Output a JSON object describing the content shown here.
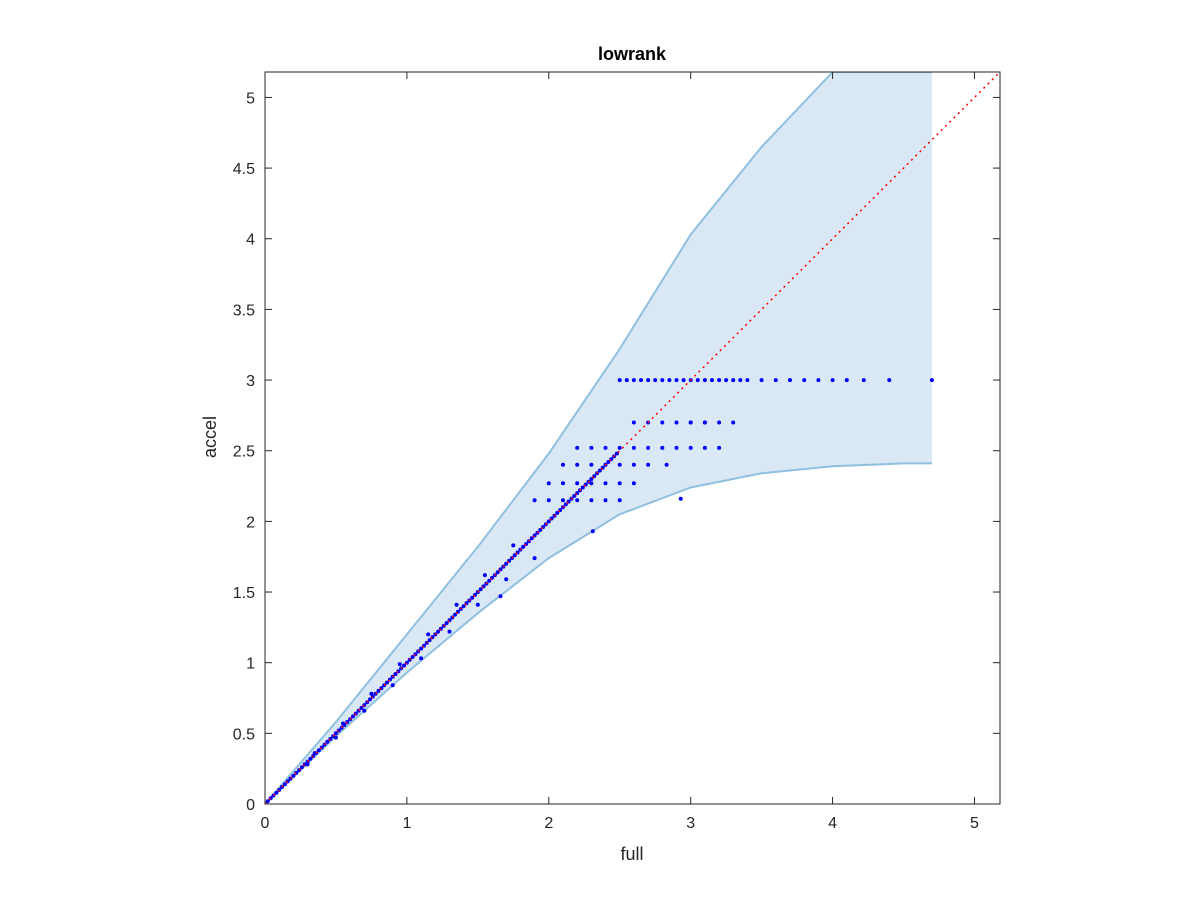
{
  "chart_data": {
    "type": "scatter",
    "title": "lowrank",
    "xlabel": "full",
    "ylabel": "accel",
    "xlim": [
      0,
      5.18
    ],
    "ylim": [
      0,
      5.18
    ],
    "xticks": [
      0,
      1,
      2,
      3,
      4,
      5
    ],
    "xtick_labels": [
      "0",
      "1",
      "2",
      "3",
      "4",
      "5"
    ],
    "yticks": [
      0,
      0.5,
      1,
      1.5,
      2,
      2.5,
      3,
      3.5,
      4,
      4.5,
      5
    ],
    "ytick_labels": [
      "0",
      "0.5",
      "1",
      "1.5",
      "2",
      "2.5",
      "3",
      "3.5",
      "4",
      "4.5",
      "5"
    ],
    "grid": false,
    "colors": {
      "points": "#0000ff",
      "band_fill": "#d9e8f4",
      "band_edge": "#8fc0e0",
      "reference_line": "#ff0000"
    },
    "reference_line": {
      "style": "dotted",
      "x": [
        0,
        5.18
      ],
      "y": [
        0,
        5.18
      ]
    },
    "band": {
      "upper": {
        "x": [
          0,
          0.5,
          1,
          1.5,
          2,
          2.5,
          3,
          3.5,
          4,
          4.5,
          4.7
        ],
        "y": [
          0,
          0.58,
          1.2,
          1.82,
          2.48,
          3.22,
          4.03,
          4.65,
          5.18,
          5.18,
          5.18
        ]
      },
      "lower": {
        "x": [
          0,
          0.5,
          1,
          1.5,
          2,
          2.5,
          3,
          3.5,
          4,
          4.5,
          4.7
        ],
        "y": [
          0,
          0.48,
          0.93,
          1.35,
          1.74,
          2.05,
          2.24,
          2.34,
          2.39,
          2.41,
          2.41
        ]
      }
    },
    "series": [
      {
        "x": [
          0.02,
          0.04,
          0.06,
          0.08,
          0.1,
          0.12,
          0.14,
          0.16,
          0.18,
          0.2,
          0.22,
          0.24,
          0.26,
          0.28,
          0.3,
          0.32,
          0.34,
          0.36,
          0.38,
          0.4,
          0.42,
          0.44,
          0.46,
          0.48,
          0.5,
          0.52,
          0.54,
          0.56,
          0.58,
          0.6,
          0.62,
          0.64,
          0.66,
          0.68,
          0.7,
          0.72,
          0.74,
          0.76,
          0.78,
          0.8,
          0.82,
          0.84,
          0.86,
          0.88,
          0.9,
          0.92,
          0.94,
          0.96,
          0.98,
          1.0,
          1.02,
          1.04,
          1.06,
          1.08,
          1.1,
          1.12,
          1.14,
          1.16,
          1.18,
          1.2,
          1.22,
          1.24,
          1.26,
          1.28,
          1.3,
          1.32,
          1.34,
          1.36,
          1.38,
          1.4,
          1.42,
          1.44,
          1.46,
          1.48,
          1.5,
          1.52,
          1.54,
          1.56,
          1.58,
          1.6,
          1.62,
          1.64,
          1.66,
          1.68,
          1.7,
          1.72,
          1.74,
          1.76,
          1.78,
          1.8,
          1.82,
          1.84,
          1.86,
          1.88,
          1.9,
          1.92,
          1.94,
          1.96,
          1.98,
          2.0,
          2.02,
          2.04,
          2.06,
          2.08,
          2.1,
          2.12,
          2.14,
          2.16,
          2.18,
          2.2,
          2.22,
          2.24,
          2.26,
          2.28,
          2.3,
          2.32,
          2.34,
          2.36,
          2.38,
          2.4,
          2.42,
          2.44,
          2.46,
          2.48,
          2.5,
          2.55,
          2.6,
          2.65,
          2.7,
          2.75,
          2.8,
          2.85,
          2.9,
          2.95,
          3.0,
          3.05,
          3.1,
          3.15,
          3.2,
          3.25,
          3.3,
          3.35,
          3.4,
          3.5,
          3.6,
          3.7,
          3.8,
          3.9,
          4.0,
          4.1,
          4.22,
          4.4,
          4.7,
          1.66,
          1.9,
          2.31,
          2.93,
          3.0,
          3.1,
          2.6,
          2.7,
          2.8,
          2.9,
          3.0,
          3.1,
          3.2,
          3.3,
          2.2,
          2.3,
          2.4,
          2.5,
          2.6,
          2.7,
          2.8,
          2.9,
          3.0,
          3.1,
          3.2,
          2.1,
          2.2,
          2.3,
          2.4,
          2.5,
          2.6,
          2.7,
          2.83,
          2.0,
          2.1,
          2.2,
          2.3,
          2.4,
          2.5,
          2.6,
          1.9,
          2.0,
          2.1,
          2.2,
          2.3,
          2.4,
          2.5,
          0.3,
          0.5,
          0.7,
          0.9,
          1.1,
          1.3,
          1.5,
          1.7,
          0.35,
          0.55,
          0.75,
          0.95,
          1.15,
          1.35,
          1.55,
          1.75
        ],
        "y": [
          0.02,
          0.04,
          0.06,
          0.08,
          0.1,
          0.12,
          0.14,
          0.16,
          0.18,
          0.2,
          0.22,
          0.24,
          0.26,
          0.28,
          0.3,
          0.32,
          0.34,
          0.36,
          0.38,
          0.4,
          0.42,
          0.44,
          0.46,
          0.48,
          0.5,
          0.52,
          0.54,
          0.56,
          0.58,
          0.6,
          0.62,
          0.64,
          0.66,
          0.68,
          0.7,
          0.72,
          0.74,
          0.76,
          0.78,
          0.8,
          0.82,
          0.84,
          0.86,
          0.88,
          0.9,
          0.92,
          0.94,
          0.96,
          0.98,
          1.0,
          1.02,
          1.04,
          1.06,
          1.08,
          1.1,
          1.12,
          1.14,
          1.16,
          1.18,
          1.2,
          1.22,
          1.24,
          1.26,
          1.28,
          1.3,
          1.32,
          1.34,
          1.36,
          1.38,
          1.4,
          1.42,
          1.44,
          1.46,
          1.48,
          1.5,
          1.52,
          1.54,
          1.56,
          1.58,
          1.6,
          1.62,
          1.64,
          1.66,
          1.68,
          1.7,
          1.72,
          1.74,
          1.76,
          1.78,
          1.8,
          1.82,
          1.84,
          1.86,
          1.88,
          1.9,
          1.92,
          1.94,
          1.96,
          1.98,
          2.0,
          2.02,
          2.04,
          2.06,
          2.08,
          2.1,
          2.12,
          2.14,
          2.16,
          2.18,
          2.2,
          2.22,
          2.24,
          2.26,
          2.28,
          2.3,
          2.32,
          2.34,
          2.36,
          2.38,
          2.4,
          2.42,
          2.44,
          2.46,
          2.48,
          3.0,
          3.0,
          3.0,
          3.0,
          3.0,
          3.0,
          3.0,
          3.0,
          3.0,
          3.0,
          3.0,
          3.0,
          3.0,
          3.0,
          3.0,
          3.0,
          3.0,
          3.0,
          3.0,
          3.0,
          3.0,
          3.0,
          3.0,
          3.0,
          3.0,
          3.0,
          3.0,
          3.0,
          3.0,
          1.47,
          1.74,
          1.93,
          2.16,
          2.7,
          2.7,
          2.7,
          2.7,
          2.7,
          2.7,
          2.7,
          2.7,
          2.7,
          2.7,
          2.52,
          2.52,
          2.52,
          2.52,
          2.52,
          2.52,
          2.52,
          2.52,
          2.52,
          2.52,
          2.52,
          2.4,
          2.4,
          2.4,
          2.4,
          2.4,
          2.4,
          2.4,
          2.4,
          2.27,
          2.27,
          2.27,
          2.27,
          2.27,
          2.27,
          2.27,
          2.15,
          2.15,
          2.15,
          2.15,
          2.15,
          2.15,
          2.15,
          0.28,
          0.47,
          0.66,
          0.84,
          1.03,
          1.22,
          1.41,
          1.59,
          0.36,
          0.57,
          0.78,
          0.99,
          1.2,
          1.41,
          1.62,
          1.83
        ]
      }
    ]
  }
}
